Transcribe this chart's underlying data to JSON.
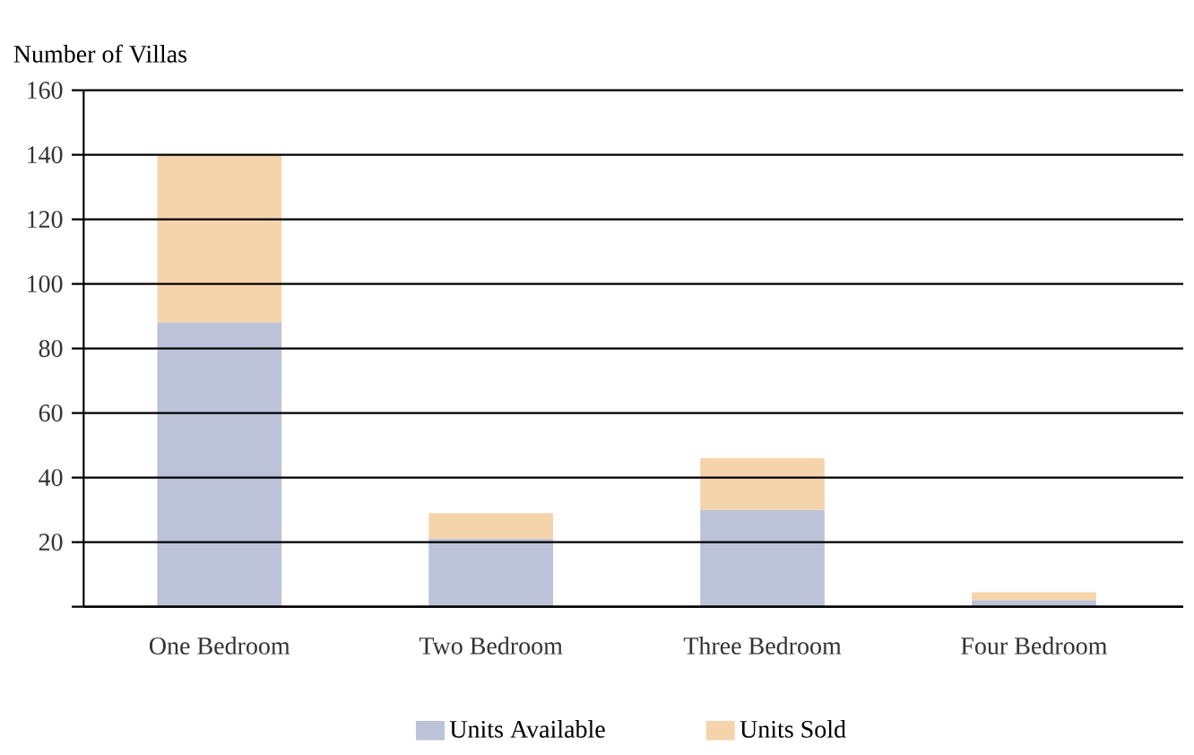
{
  "chart_data": {
    "type": "bar",
    "stacked": true,
    "ylabel": "Number of Villas",
    "categories": [
      "One Bedroom",
      "Two Bedroom",
      "Three Bedroom",
      "Four Bedroom"
    ],
    "series": [
      {
        "name": "Units Available",
        "color": "#bcc2d7",
        "values": [
          88,
          21,
          30,
          2
        ]
      },
      {
        "name": "Units Sold",
        "color": "#f6d4ab",
        "values": [
          52,
          8,
          16,
          2.5
        ]
      }
    ],
    "ylim": [
      0,
      160
    ],
    "yticks": [
      {
        "value": 0,
        "label": null
      },
      20,
      40,
      60,
      80,
      100,
      120,
      140,
      160
    ],
    "grid": "y",
    "legend": "bottom"
  }
}
